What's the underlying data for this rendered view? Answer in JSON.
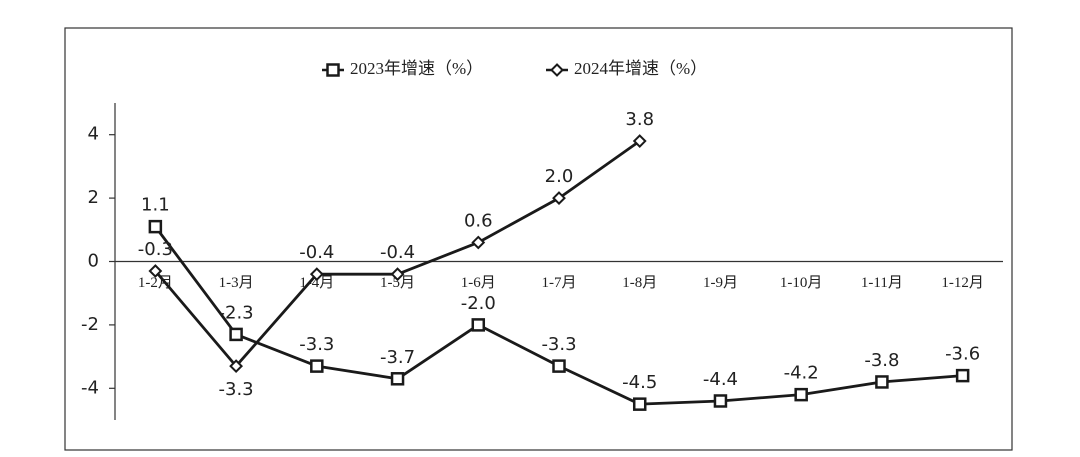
{
  "chart_data": {
    "type": "line",
    "categories": [
      "1-2月",
      "1-3月",
      "1-4月",
      "1-5月",
      "1-6月",
      "1-7月",
      "1-8月",
      "1-9月",
      "1-10月",
      "1-11月",
      "1-12月"
    ],
    "series": [
      {
        "name": "2023年增速（%）",
        "color": "#1a1a1a",
        "marker": "square",
        "values": [
          1.1,
          -2.3,
          -3.3,
          -3.7,
          -2.0,
          -3.3,
          -4.5,
          -4.4,
          -4.2,
          -3.8,
          -3.6
        ],
        "value_labels": [
          "1.1",
          "-2.3",
          "-3.3",
          "-3.7",
          "-2.0",
          "-3.3",
          "-4.5",
          "-4.4",
          "-4.2",
          "-3.8",
          "-3.6"
        ]
      },
      {
        "name": "2024年增速（%）",
        "color": "#1a1a1a",
        "marker": "diamond",
        "values": [
          -0.3,
          -3.3,
          -0.4,
          -0.4,
          0.6,
          2.0,
          3.8,
          null,
          null,
          null,
          null
        ],
        "value_labels": [
          "-0.3",
          "-3.3",
          "-0.4",
          "-0.4",
          "0.6",
          "2.0",
          "3.8",
          null,
          null,
          null,
          null
        ]
      }
    ],
    "ylim": [
      -5,
      5
    ],
    "yticks": [
      -4,
      -2,
      0,
      2,
      4
    ]
  }
}
